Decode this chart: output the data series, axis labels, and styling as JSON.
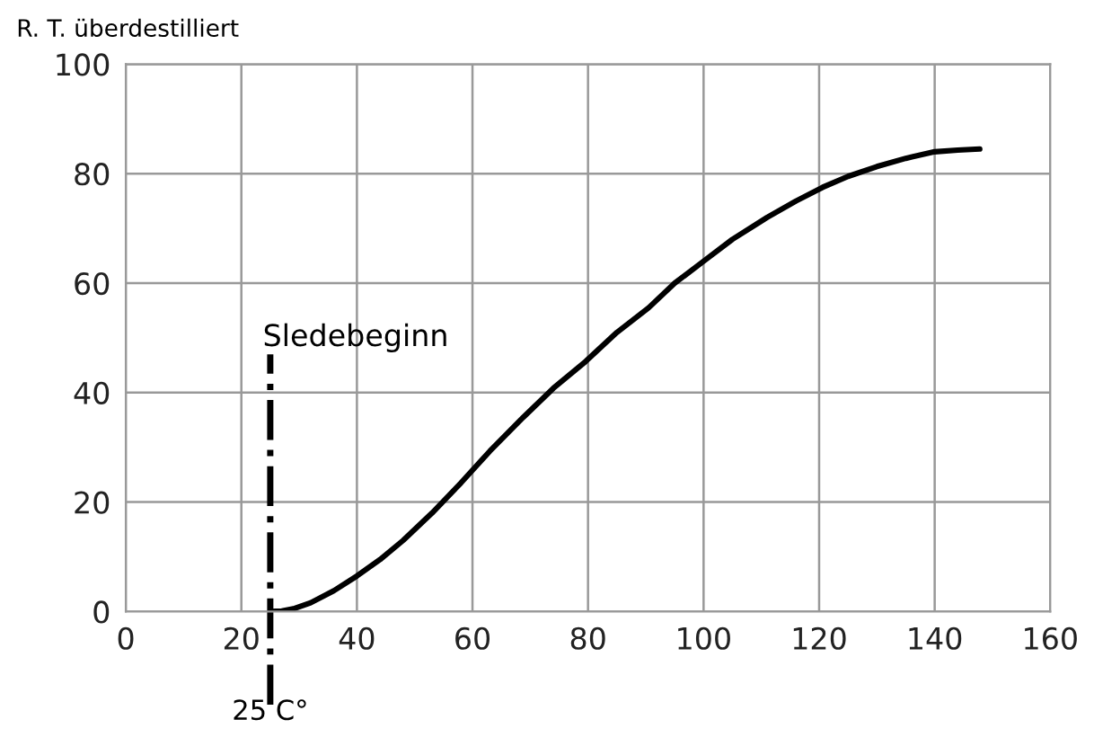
{
  "chart_data": {
    "type": "line",
    "ylabel": "R. T. überdestilliert",
    "x": [
      25,
      27,
      29,
      32,
      36,
      40,
      44,
      48,
      53,
      58,
      63,
      68.8,
      74,
      79.6,
      85,
      90.5,
      95,
      100,
      105,
      111,
      116,
      120.6,
      125,
      130,
      135,
      140,
      144,
      147.8
    ],
    "series": [
      {
        "color": "#000000",
        "values": [
          0,
          0.1,
          0.5,
          1.6,
          3.8,
          6.5,
          9.5,
          13,
          18,
          23.5,
          29.3,
          35.5,
          40.8,
          45.7,
          51,
          55.5,
          60,
          64,
          68,
          72,
          75,
          77.5,
          79.5,
          81.3,
          82.8,
          84,
          84.3,
          84.5
        ]
      }
    ],
    "xlim": [
      0,
      160
    ],
    "ylim": [
      0,
      100
    ],
    "xticks": [
      0,
      20,
      40,
      60,
      80,
      100,
      120,
      140,
      160
    ],
    "yticks": [
      0,
      20,
      40,
      60,
      80,
      100
    ],
    "grid": true,
    "marker": "none",
    "line_style": "solid",
    "ref_lines": [
      {
        "axis": "x",
        "value": 25,
        "label": "25 C°",
        "color": "#000000",
        "line_style": "dashdot"
      }
    ],
    "annotations": [
      {
        "text": "Sledebeginn",
        "x": 25,
        "y": 46
      }
    ]
  }
}
